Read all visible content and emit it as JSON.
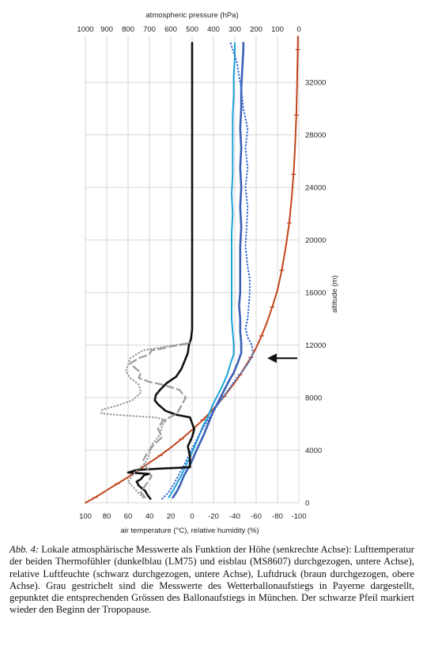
{
  "chart_data": {
    "type": "line",
    "top_axis": {
      "label": "atmospheric pressure (hPa)",
      "ticks": [
        "1000",
        "900",
        "800",
        "700",
        "600",
        "500",
        "400",
        "300",
        "200",
        "100",
        "0"
      ],
      "range": [
        1000,
        0
      ]
    },
    "bottom_axis": {
      "label": "air temperature (°C), relative humidity (%)",
      "ticks": [
        "100",
        "80",
        "60",
        "40",
        "20",
        "0",
        "-20",
        "-40",
        "-60",
        "-80",
        "-100"
      ],
      "range": [
        100,
        -100
      ]
    },
    "right_axis": {
      "label": "altitude (m)",
      "ticks": [
        "0",
        "4000",
        "8000",
        "12000",
        "16000",
        "20000",
        "24000",
        "28000",
        "32000"
      ],
      "range": [
        0,
        35500
      ]
    },
    "grid": true,
    "tropopause_arrow_altitude": 11000,
    "series": [
      {
        "name": "",
        "color": "#c1441b",
        "style": "solid",
        "axis": "top",
        "points": [
          [
            1000,
            0
          ],
          [
            955,
            400
          ],
          [
            900,
            950
          ],
          [
            850,
            1450
          ],
          [
            800,
            1950
          ],
          [
            750,
            2500
          ],
          [
            700,
            3050
          ],
          [
            650,
            3600
          ],
          [
            600,
            4200
          ],
          [
            550,
            4850
          ],
          [
            500,
            5550
          ],
          [
            450,
            6300
          ],
          [
            400,
            7150
          ],
          [
            350,
            8100
          ],
          [
            300,
            9150
          ],
          [
            275,
            9750
          ],
          [
            250,
            10400
          ],
          [
            225,
            11050
          ],
          [
            200,
            11800
          ],
          [
            175,
            12700
          ],
          [
            150,
            13700
          ],
          [
            125,
            14900
          ],
          [
            100,
            16200
          ],
          [
            80,
            17700
          ],
          [
            60,
            19600
          ],
          [
            45,
            21300
          ],
          [
            35,
            23000
          ],
          [
            25,
            25000
          ],
          [
            18,
            27000
          ],
          [
            12,
            29500
          ],
          [
            8,
            32000
          ],
          [
            5,
            34500
          ],
          [
            4,
            35500
          ]
        ]
      },
      {
        "name": "",
        "color": "#3a5fb5",
        "style": "solid",
        "axis": "bottom",
        "points": [
          [
            18,
            400
          ],
          [
            14,
            900
          ],
          [
            11,
            1400
          ],
          [
            8,
            2000
          ],
          [
            4,
            2600
          ],
          [
            0,
            3200
          ],
          [
            -3,
            3800
          ],
          [
            -7,
            4500
          ],
          [
            -11,
            5200
          ],
          [
            -15,
            6000
          ],
          [
            -19,
            6800
          ],
          [
            -24,
            7600
          ],
          [
            -29,
            8400
          ],
          [
            -34,
            9200
          ],
          [
            -39,
            9900
          ],
          [
            -43,
            10700
          ],
          [
            -46,
            11400
          ],
          [
            -46,
            12200
          ],
          [
            -45,
            13000
          ],
          [
            -45,
            14000
          ],
          [
            -44,
            15000
          ],
          [
            -45,
            16000
          ],
          [
            -45,
            17000
          ],
          [
            -45,
            18000
          ],
          [
            -45,
            19500
          ],
          [
            -46,
            21000
          ],
          [
            -45,
            22500
          ],
          [
            -46,
            24000
          ],
          [
            -45,
            25500
          ],
          [
            -46,
            27000
          ],
          [
            -45,
            28500
          ],
          [
            -46,
            30000
          ],
          [
            -46,
            31500
          ],
          [
            -47,
            33000
          ],
          [
            -48,
            34500
          ],
          [
            -48,
            35000
          ]
        ]
      },
      {
        "name": "",
        "color": "#1da3d9",
        "style": "solid",
        "axis": "bottom",
        "points": [
          [
            22,
            400
          ],
          [
            18,
            900
          ],
          [
            14,
            1500
          ],
          [
            10,
            2100
          ],
          [
            6,
            2800
          ],
          [
            2,
            3500
          ],
          [
            -2,
            4200
          ],
          [
            -6,
            5000
          ],
          [
            -10,
            5800
          ],
          [
            -15,
            6600
          ],
          [
            -19,
            7400
          ],
          [
            -24,
            8200
          ],
          [
            -29,
            9000
          ],
          [
            -33,
            9800
          ],
          [
            -36,
            10600
          ],
          [
            -39,
            11300
          ],
          [
            -39,
            12100
          ],
          [
            -38,
            13000
          ],
          [
            -37,
            14000
          ],
          [
            -37,
            15000
          ],
          [
            -37,
            16000
          ],
          [
            -37,
            17500
          ],
          [
            -37,
            19000
          ],
          [
            -37,
            20500
          ],
          [
            -38,
            22000
          ],
          [
            -37,
            23500
          ],
          [
            -38,
            25000
          ],
          [
            -38,
            26500
          ],
          [
            -38,
            28000
          ],
          [
            -38,
            29500
          ],
          [
            -39,
            31000
          ],
          [
            -39,
            32500
          ],
          [
            -40,
            34000
          ],
          [
            -40,
            35000
          ]
        ]
      },
      {
        "name": "",
        "color": "#3a6fd0",
        "style": "dotted",
        "axis": "bottom",
        "points": [
          [
            28,
            300
          ],
          [
            22,
            800
          ],
          [
            18,
            1300
          ],
          [
            14,
            1900
          ],
          [
            10,
            2500
          ],
          [
            6,
            3100
          ],
          [
            2,
            3800
          ],
          [
            -3,
            4600
          ],
          [
            -8,
            5400
          ],
          [
            -14,
            6200
          ],
          [
            -20,
            7000
          ],
          [
            -27,
            7800
          ],
          [
            -34,
            8600
          ],
          [
            -41,
            9400
          ],
          [
            -48,
            10100
          ],
          [
            -54,
            10800
          ],
          [
            -57,
            11400
          ],
          [
            -56,
            12000
          ],
          [
            -52,
            12600
          ],
          [
            -50,
            13300
          ],
          [
            -52,
            14000
          ],
          [
            -53,
            15000
          ],
          [
            -54,
            16000
          ],
          [
            -54,
            17000
          ],
          [
            -52,
            18000
          ],
          [
            -50,
            19500
          ],
          [
            -51,
            21000
          ],
          [
            -52,
            22500
          ],
          [
            -50,
            24000
          ],
          [
            -52,
            25500
          ],
          [
            -50,
            27000
          ],
          [
            -52,
            28500
          ],
          [
            -48,
            30000
          ],
          [
            -46,
            31500
          ],
          [
            -44,
            32500
          ],
          [
            -42,
            33500
          ],
          [
            -38,
            34500
          ],
          [
            -36,
            35000
          ]
        ]
      },
      {
        "name": "",
        "color": "#111111",
        "style": "solid",
        "axis": "bottom",
        "points": [
          [
            39,
            300
          ],
          [
            42,
            600
          ],
          [
            44,
            900
          ],
          [
            50,
            1300
          ],
          [
            52,
            1600
          ],
          [
            48,
            1800
          ],
          [
            45,
            2100
          ],
          [
            40,
            2200
          ],
          [
            60,
            2300
          ],
          [
            52,
            2500
          ],
          [
            30,
            2600
          ],
          [
            2,
            2700
          ],
          [
            2,
            3500
          ],
          [
            4,
            4300
          ],
          [
            0,
            5000
          ],
          [
            -2,
            5600
          ],
          [
            2,
            6500
          ],
          [
            15,
            6700
          ],
          [
            25,
            7000
          ],
          [
            32,
            7500
          ],
          [
            35,
            7800
          ],
          [
            34,
            8200
          ],
          [
            30,
            8600
          ],
          [
            24,
            9100
          ],
          [
            15,
            9600
          ],
          [
            10,
            10200
          ],
          [
            7,
            10800
          ],
          [
            4,
            11400
          ],
          [
            3,
            12000
          ],
          [
            1,
            12500
          ],
          [
            0,
            13200
          ],
          [
            0,
            14500
          ],
          [
            0,
            17000
          ],
          [
            0,
            20000
          ],
          [
            0,
            24000
          ],
          [
            0,
            28000
          ],
          [
            0,
            32000
          ],
          [
            0,
            35000
          ]
        ]
      },
      {
        "name": "",
        "color": "#9a9a9a",
        "style": "dashed",
        "axis": "bottom",
        "points": [
          [
            44,
            400
          ],
          [
            48,
            800
          ],
          [
            44,
            1300
          ],
          [
            38,
            2000
          ],
          [
            42,
            2600
          ],
          [
            46,
            3200
          ],
          [
            42,
            3800
          ],
          [
            36,
            4400
          ],
          [
            28,
            5000
          ],
          [
            32,
            5600
          ],
          [
            28,
            6200
          ],
          [
            14,
            6800
          ],
          [
            10,
            7400
          ],
          [
            6,
            8000
          ],
          [
            12,
            8600
          ],
          [
            28,
            9000
          ],
          [
            40,
            9200
          ],
          [
            50,
            9500
          ],
          [
            48,
            9900
          ],
          [
            54,
            10300
          ],
          [
            58,
            10600
          ],
          [
            50,
            11000
          ],
          [
            40,
            11300
          ],
          [
            38,
            11600
          ],
          [
            30,
            11700
          ],
          [
            20,
            11900
          ],
          [
            12,
            12000
          ],
          [
            5,
            12100
          ],
          [
            2,
            12300
          ]
        ]
      },
      {
        "name": "",
        "color": "#9a9a9a",
        "style": "dotted",
        "axis": "bottom",
        "points": [
          [
            46,
            400
          ],
          [
            52,
            900
          ],
          [
            60,
            1600
          ],
          [
            54,
            2300
          ],
          [
            44,
            3000
          ],
          [
            40,
            3700
          ],
          [
            38,
            4400
          ],
          [
            30,
            5200
          ],
          [
            28,
            5900
          ],
          [
            24,
            6300
          ],
          [
            35,
            6500
          ],
          [
            55,
            6600
          ],
          [
            72,
            6700
          ],
          [
            85,
            6800
          ],
          [
            84,
            7100
          ],
          [
            70,
            7400
          ],
          [
            56,
            7800
          ],
          [
            48,
            8400
          ],
          [
            50,
            9000
          ],
          [
            58,
            9500
          ],
          [
            62,
            10000
          ],
          [
            60,
            10500
          ],
          [
            58,
            11000
          ],
          [
            46,
            11600
          ],
          [
            24,
            11900
          ],
          [
            8,
            12100
          ],
          [
            2,
            12200
          ]
        ]
      }
    ]
  },
  "caption": {
    "prefix": "Abb. 4:",
    "text": "Lokale atmosphärische Messwerte als Funktion der Höhe (senkrechte Achse): Lufttemperatur der beiden Thermofühler (dunkelblau (LM75) und eisblau (MS8607) durchgezogen, untere Achse), relative Luftfeuchte (schwarz durchgezogen, untere Achse), Luftdruck (braun durchgezogen, obere Achse). Grau gestrichelt sind die Messwerte des Wetterballonaufstiegs in Payerne dargestellt, gepunktet die entsprechenden Grössen des Ballonaufstiegs in München. Der schwarze Pfeil markiert wieder den Beginn der Tropopause."
  }
}
